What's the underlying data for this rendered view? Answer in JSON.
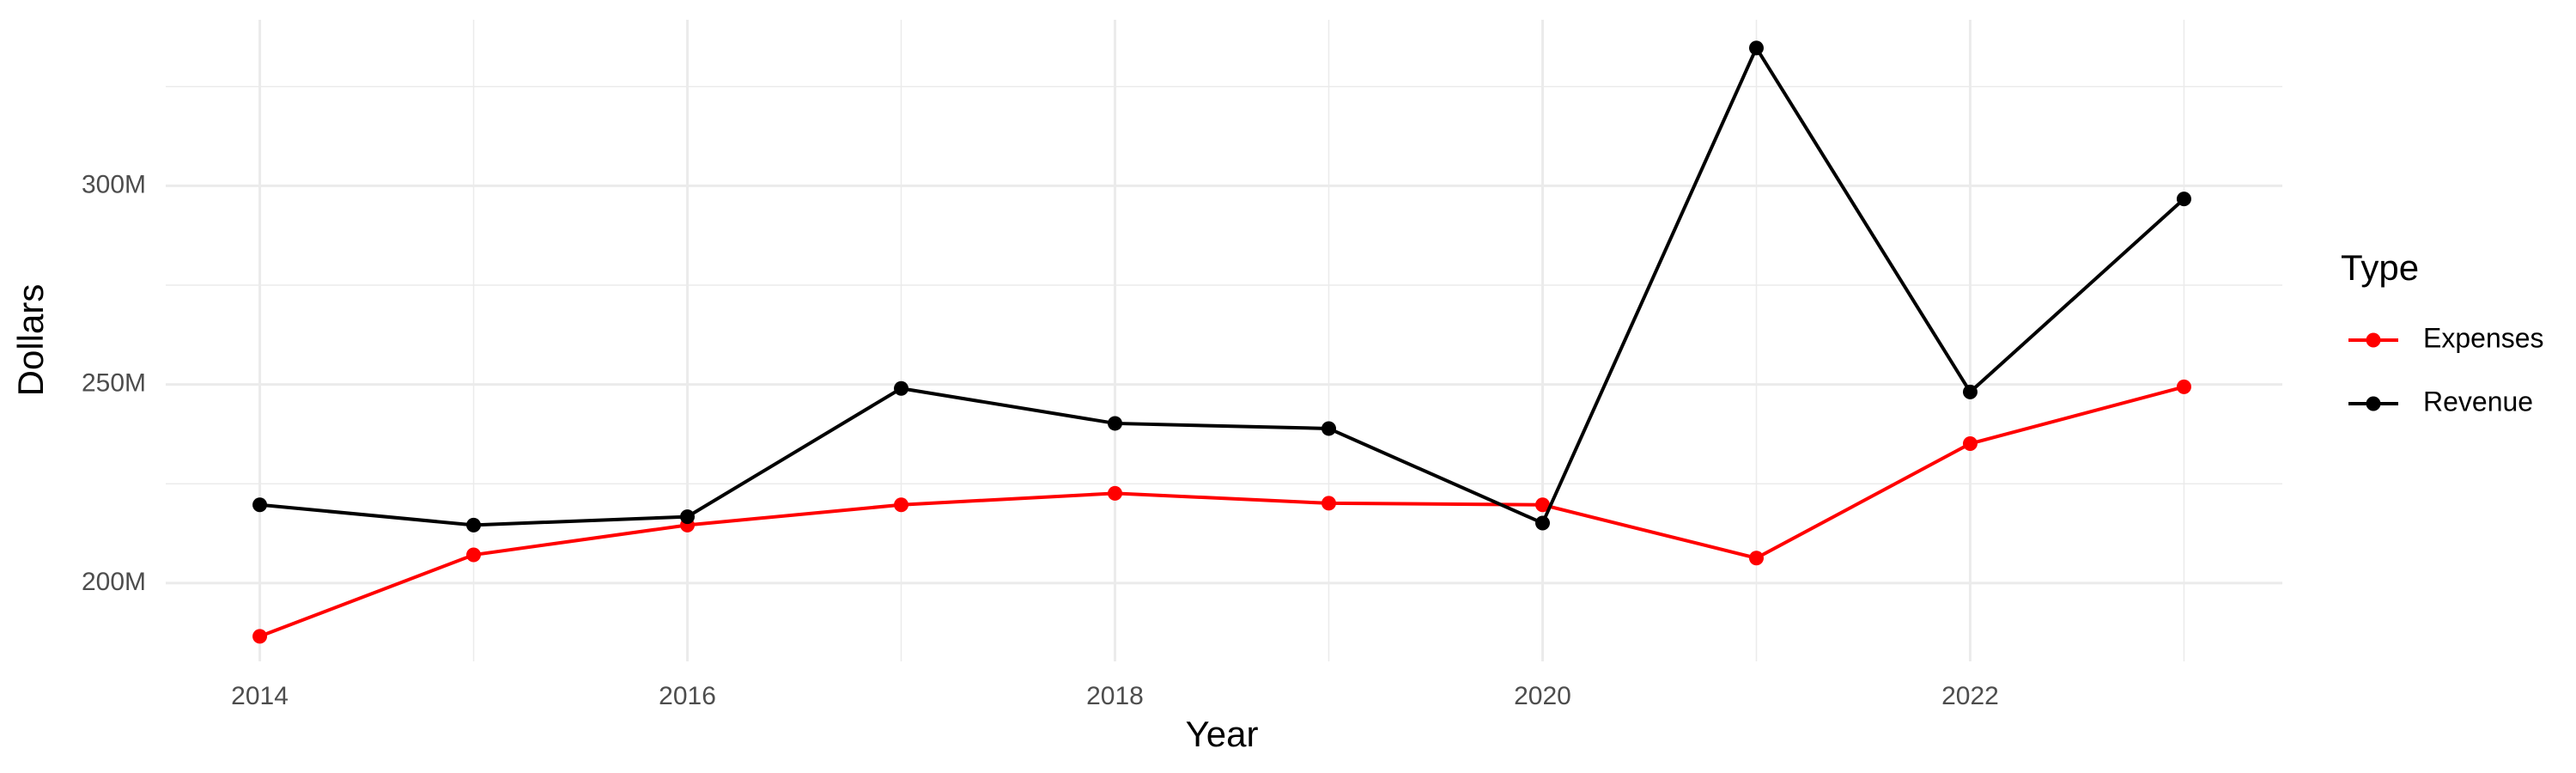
{
  "chart_data": {
    "type": "line",
    "x_label": "Year",
    "y_label": "Dollars",
    "legend_title": "Type",
    "x": [
      2014,
      2015,
      2016,
      2017,
      2018,
      2019,
      2020,
      2021,
      2022,
      2023
    ],
    "series": [
      {
        "name": "Expenses",
        "color": "#ff0000",
        "values": [
          186600000,
          207100000,
          214600000,
          219700000,
          222600000,
          220100000,
          219700000,
          206300000,
          235100000,
          249400000
        ]
      },
      {
        "name": "Revenue",
        "color": "#000000",
        "values": [
          219700000,
          214600000,
          216700000,
          249000000,
          240200000,
          238900000,
          215100000,
          334700000,
          248100000,
          296700000
        ]
      }
    ],
    "xlim": [
      2013.56,
      2023.46
    ],
    "xticks": [
      2014,
      2016,
      2018,
      2020,
      2022
    ],
    "x_minor_ticks": [
      2015,
      2017,
      2019,
      2021,
      2023
    ],
    "ylim": [
      180300000,
      341800000
    ],
    "yticks": [
      {
        "value": 200000000,
        "label": "200M"
      },
      {
        "value": 250000000,
        "label": "250M"
      },
      {
        "value": 300000000,
        "label": "300M"
      }
    ],
    "y_minor_ticks": [
      225000000,
      275000000,
      325000000
    ],
    "grid": true,
    "legend_position": "right"
  }
}
